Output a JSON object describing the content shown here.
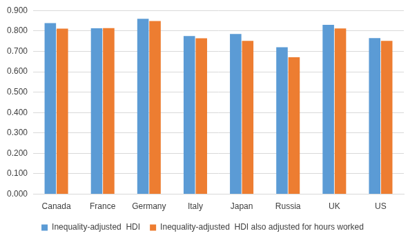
{
  "chart_data": {
    "type": "bar",
    "categories": [
      "Canada",
      "France",
      "Germany",
      "Italy",
      "Japan",
      "Russia",
      "UK",
      "US"
    ],
    "series": [
      {
        "name": "Inequality-adjusted  HDI",
        "color": "#5b9bd5",
        "values": [
          0.838,
          0.813,
          0.859,
          0.775,
          0.785,
          0.72,
          0.83,
          0.765
        ]
      },
      {
        "name": "Inequality-adjusted  HDI also adjusted for hours worked",
        "color": "#ed7d31",
        "values": [
          0.811,
          0.814,
          0.848,
          0.764,
          0.751,
          0.671,
          0.812,
          0.751
        ]
      }
    ],
    "ylim": [
      0,
      0.9
    ],
    "yticks": [
      {
        "value": 0,
        "label": "0.000"
      },
      {
        "value": 0.1,
        "label": "0.100"
      },
      {
        "value": 0.2,
        "label": "0.200"
      },
      {
        "value": 0.3,
        "label": "0.300"
      },
      {
        "value": 0.4,
        "label": "0.400"
      },
      {
        "value": 0.5,
        "label": "0.500"
      },
      {
        "value": 0.6,
        "label": "0.600"
      },
      {
        "value": 0.7,
        "label": "0.700"
      },
      {
        "value": 0.8,
        "label": "0.800"
      },
      {
        "value": 0.9,
        "label": "0.900"
      }
    ],
    "grid": true,
    "legend": "bottom"
  }
}
